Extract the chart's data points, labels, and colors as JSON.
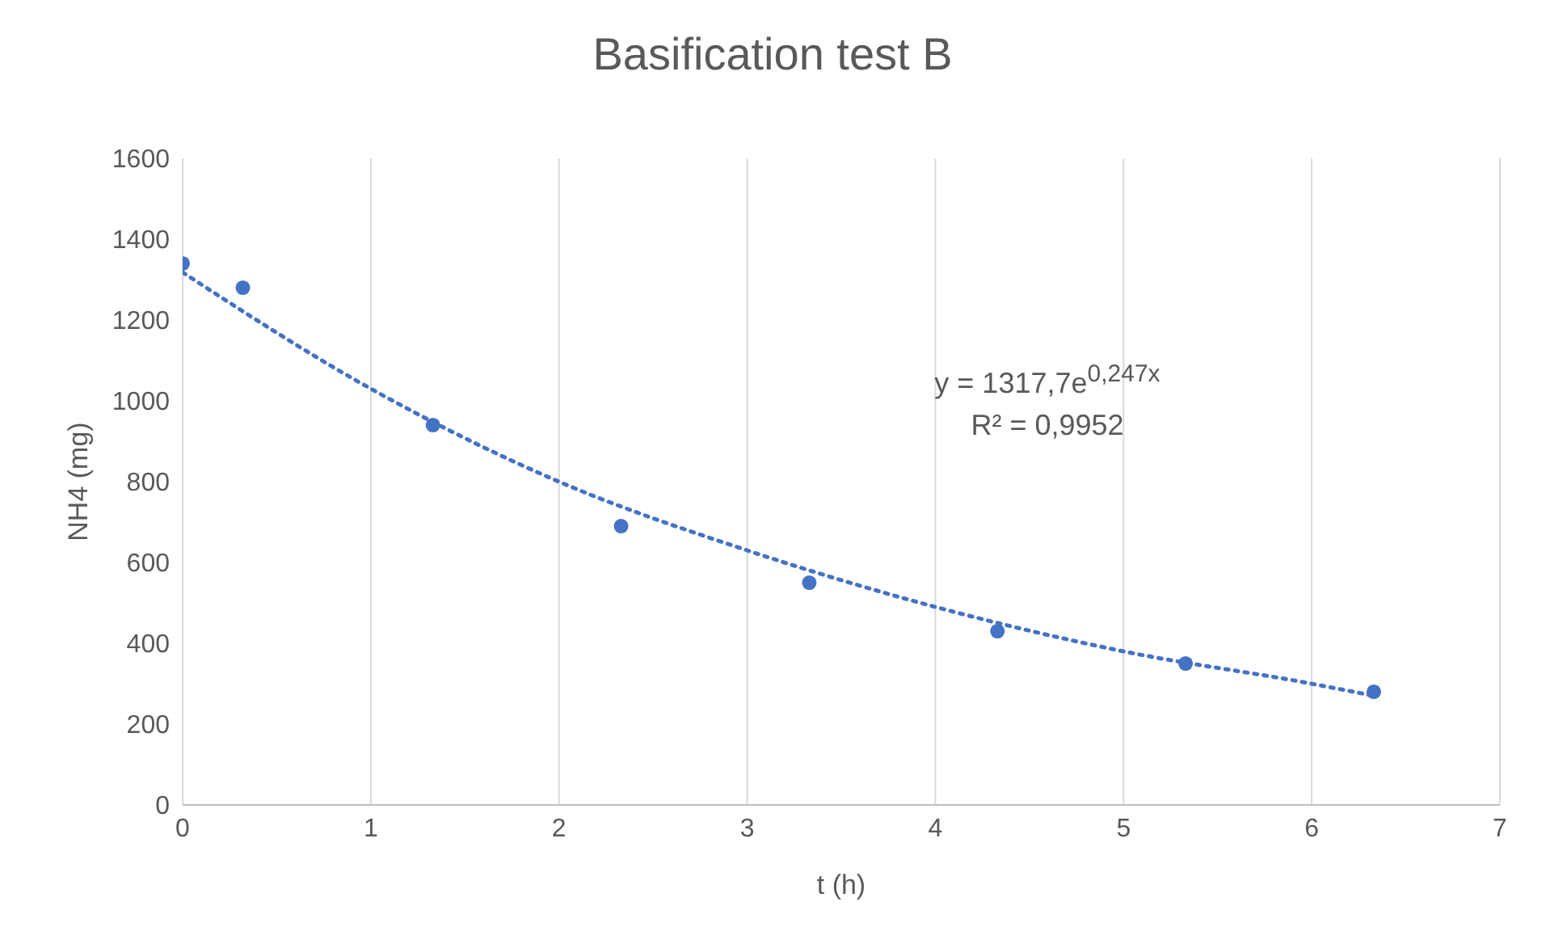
{
  "chart_data": {
    "type": "scatter",
    "title": "Basification test B",
    "xlabel": "t (h)",
    "ylabel": "NH4  (mg)",
    "xlim": [
      0,
      7
    ],
    "xticks": [
      0,
      1,
      2,
      3,
      4,
      5,
      6,
      7
    ],
    "ylim": [
      0,
      1600
    ],
    "yticks": [
      0,
      200,
      400,
      600,
      800,
      1000,
      1200,
      1400,
      1600
    ],
    "grid": "x",
    "marker": "circle",
    "series": [
      {
        "color": "#4472c4",
        "x": [
          0,
          0.32,
          1.33,
          2.33,
          3.33,
          4.33,
          5.33,
          6.33
        ],
        "values": [
          1340,
          1280,
          940,
          690,
          550,
          430,
          350,
          280
        ]
      },
      {
        "type": "line",
        "color": "#4472c4",
        "line_style": "dotted",
        "marker": "none",
        "x": [
          0,
          1,
          2,
          3,
          4,
          5,
          6,
          6.33
        ],
        "values": [
          1318,
          1030,
          800,
          630,
          490,
          380,
          300,
          270
        ]
      }
    ],
    "annotations": [
      "y = 1317,7e$^{0,247x}$",
      "R² = 0,9952"
    ]
  }
}
